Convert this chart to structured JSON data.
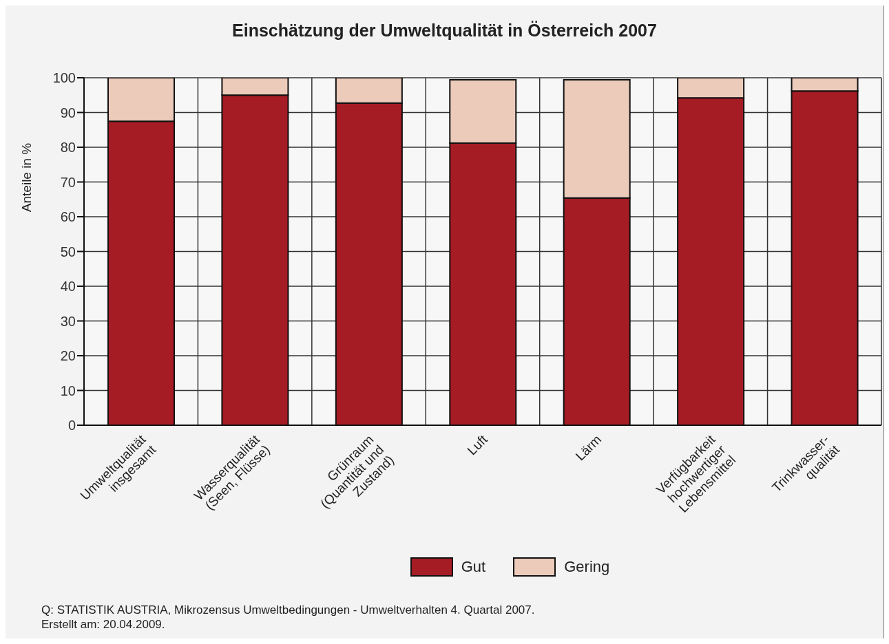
{
  "chart_data": {
    "type": "bar",
    "title": "Einschätzung der Umweltqualität in Österreich 2007",
    "ylabel": "Anteile in %",
    "categories": [
      "Umweltqualität\ninsgesamt",
      "Wasserqualität\n(Seen, Flüsse)",
      "Grünraum\n(Quantität und\nZustand)",
      "Luft",
      "Lärm",
      "Verfügbarkeit\nhochwertiger\nLebensmittel",
      "Trinkwasser-\nqualität"
    ],
    "series": [
      {
        "name": "Gut",
        "color": "#a51c24",
        "values": [
          87.5,
          95,
          92.7,
          81.2,
          65.4,
          94.2,
          96.2
        ]
      },
      {
        "name": "Gering",
        "color": "#eccbbb",
        "values": [
          12.5,
          5,
          7.3,
          18.2,
          34,
          5.8,
          3.8
        ]
      }
    ],
    "stacked": true,
    "ylim": [
      0,
      100
    ],
    "yticks": [
      0,
      10,
      20,
      30,
      40,
      50,
      60,
      70,
      80,
      90,
      100
    ],
    "grid": true,
    "legend": "bottom",
    "annotations": [
      "Q: STATISTIK AUSTRIA, Mikrozensus Umweltbedingungen - Umweltverhalten 4. Quartal 2007.",
      "Erstellt am: 20.04.2009."
    ]
  }
}
